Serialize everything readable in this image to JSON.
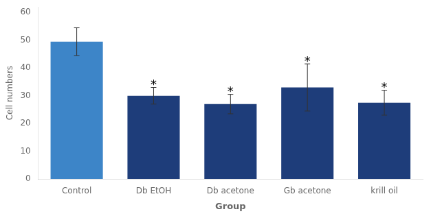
{
  "chart_data": {
    "type": "bar",
    "categories": [
      "Control",
      "Db EtOH",
      "Db acetone",
      "Gb acetone",
      "krill oil"
    ],
    "values": [
      49.5,
      30.0,
      27.0,
      33.0,
      27.5
    ],
    "errors": [
      5.0,
      3.0,
      3.5,
      8.5,
      4.5
    ],
    "colors": [
      "#3d85c8",
      "#1e3d7a",
      "#1e3d7a",
      "#1e3d7a",
      "#1e3d7a"
    ],
    "xlabel": "Group",
    "ylabel": "Cell numbers",
    "ylim": [
      0,
      62
    ],
    "yticks": [
      0,
      10,
      20,
      30,
      40,
      50,
      60
    ],
    "grid": false,
    "annotations": [
      {
        "text": "*",
        "category": "Db EtOH"
      },
      {
        "text": "*",
        "category": "Db acetone"
      },
      {
        "text": "*",
        "category": "Gb acetone"
      },
      {
        "text": "*",
        "category": "krill oil"
      }
    ]
  }
}
